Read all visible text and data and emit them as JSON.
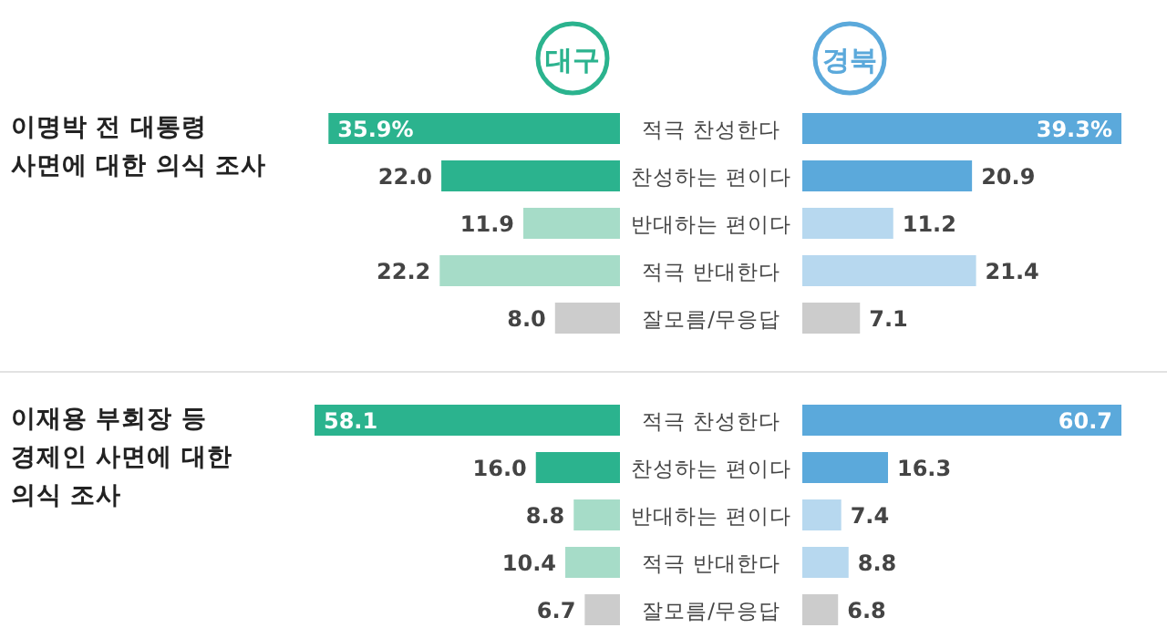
{
  "chart_data": [
    {
      "type": "bar",
      "orientation": "horizontal",
      "title": "이명박 전 대통령 사면에 대한 의식 조사",
      "categories": [
        "적극 찬성한다",
        "찬성하는 편이다",
        "반대하는 편이다",
        "적극 반대한다",
        "잘모름/무응답"
      ],
      "legend": "top",
      "series": [
        {
          "name": "대구",
          "colors": [
            "#2bb38e",
            "#2bb38e",
            "#a6dcc8",
            "#a6dcc8",
            "#cccccc"
          ],
          "values": [
            35.9,
            22.0,
            11.9,
            22.2,
            8.0
          ],
          "value_labels": [
            "35.9%",
            "22.0",
            "11.9",
            "22.2",
            "8.0"
          ]
        }
      ]
    },
    {
      "type": "bar",
      "orientation": "horizontal",
      "categories": [
        null,
        null,
        null,
        null,
        null
      ],
      "legend": "top",
      "series": [
        {
          "name": "경북",
          "colors": [
            "#5ba9db",
            "#5ba9db",
            "#b7d8ef",
            "#b7d8ef",
            "#cccccc"
          ],
          "values": [
            39.3,
            20.9,
            11.2,
            21.4,
            7.1
          ],
          "value_labels": [
            "39.3%",
            "20.9",
            "11.2",
            "21.4",
            "7.1"
          ]
        }
      ]
    },
    {
      "type": "bar",
      "orientation": "horizontal",
      "title": "이재용 부회장 등 경제인 사면에 대한 의식 조사",
      "categories": [
        "적극 찬성한다",
        "찬성하는 편이다",
        "반대하는 편이다",
        "적극 반대한다",
        "잘모름/무응답"
      ],
      "series": [
        {
          "colors": [
            "#2bb38e",
            "#2bb38e",
            "#a6dcc8",
            "#a6dcc8",
            "#cccccc"
          ],
          "values": [
            58.1,
            16.0,
            8.8,
            10.4,
            6.7
          ],
          "value_labels": [
            "58.1",
            "16.0",
            "8.8",
            "10.4",
            "6.7"
          ]
        }
      ]
    },
    {
      "type": "bar",
      "orientation": "horizontal",
      "categories": [
        null,
        null,
        null,
        null,
        null
      ],
      "series": [
        {
          "colors": [
            "#5ba9db",
            "#5ba9db",
            "#b7d8ef",
            "#b7d8ef",
            "#cccccc"
          ],
          "values": [
            60.7,
            16.3,
            7.4,
            8.8,
            6.8
          ],
          "value_labels": [
            "60.7",
            "16.3",
            "7.4",
            "8.8",
            "6.8"
          ]
        }
      ]
    }
  ]
}
